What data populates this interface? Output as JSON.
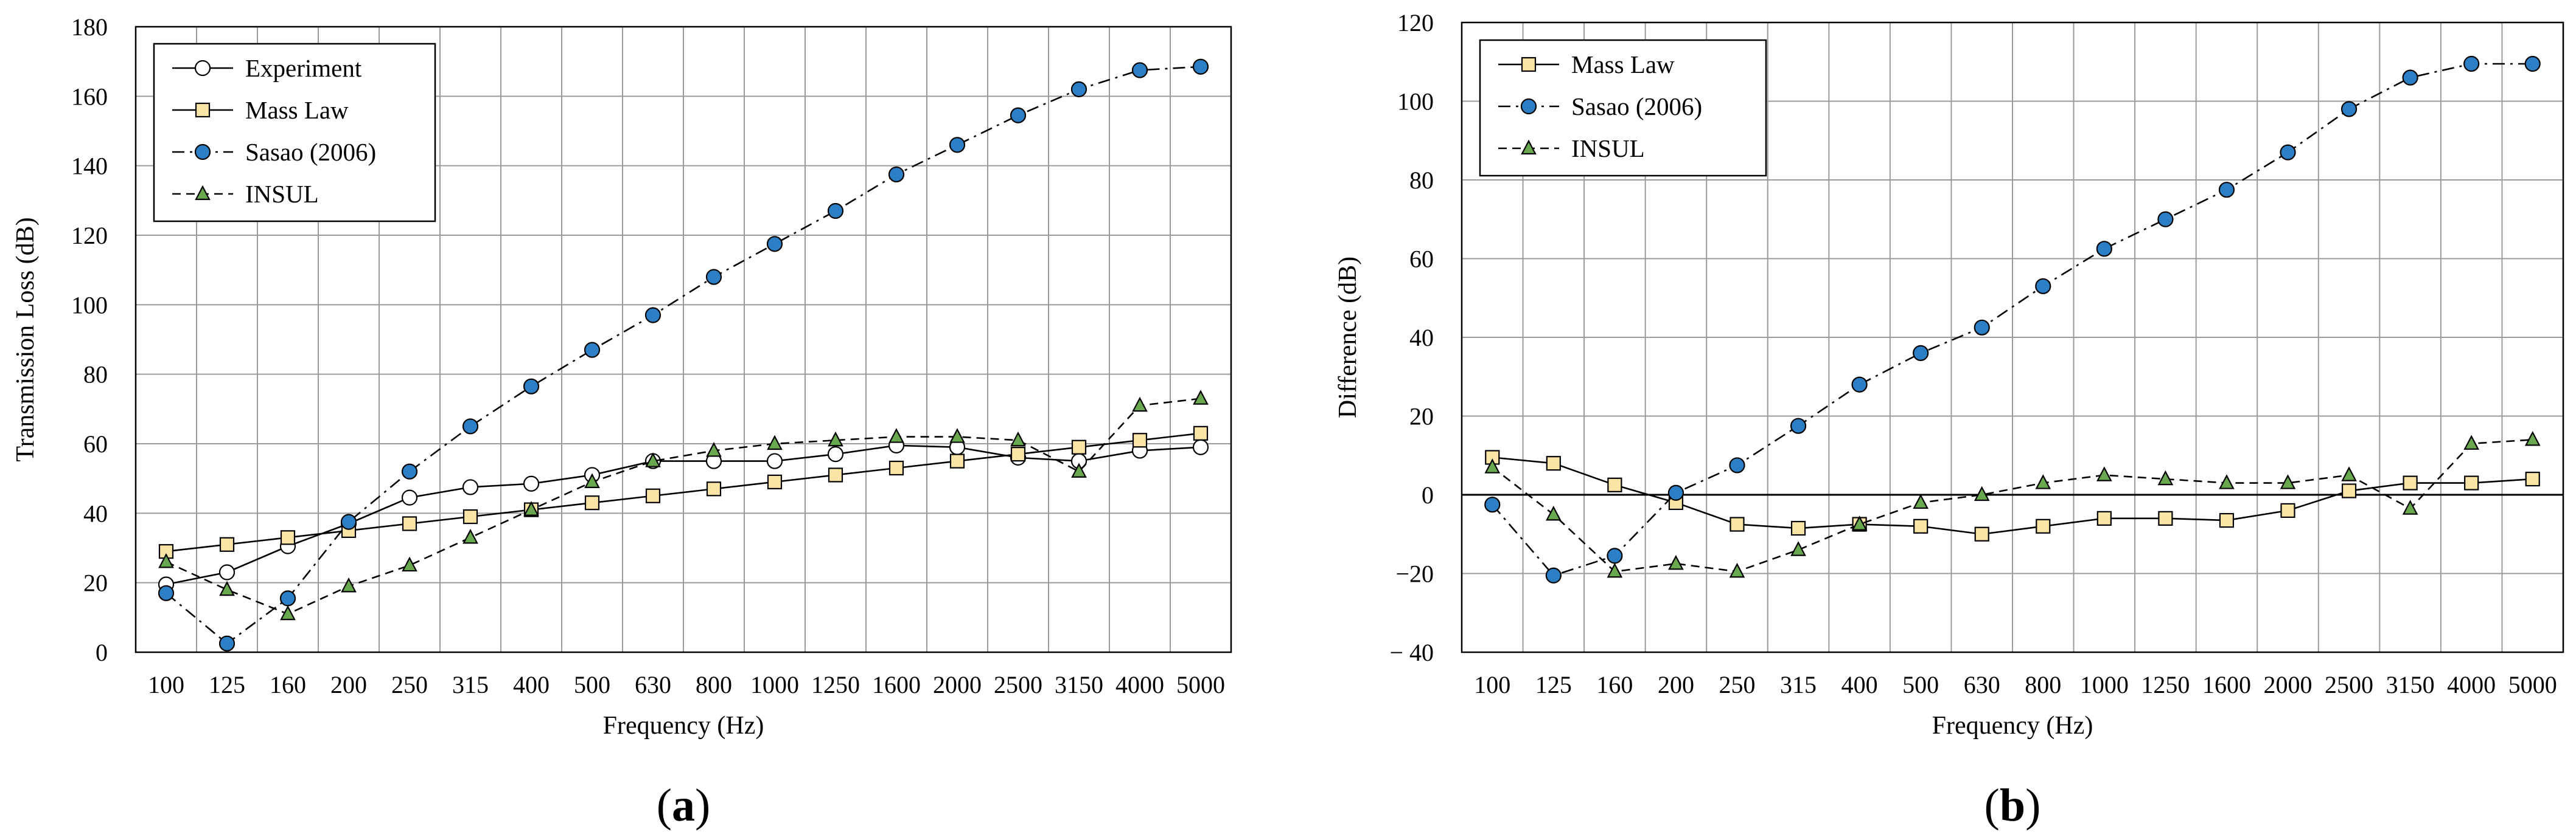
{
  "chart_data": [
    {
      "type": "line",
      "panel": "a",
      "panel_label": "a",
      "title": "",
      "xlabel": "Frequency  (Hz)",
      "ylabel": "Transmission Loss (dB)",
      "categories": [
        "100",
        "125",
        "160",
        "200",
        "250",
        "315",
        "400",
        "500",
        "630",
        "800",
        "1000",
        "1250",
        "1600",
        "2000",
        "2500",
        "3150",
        "4000",
        "5000"
      ],
      "ylim": [
        0,
        180
      ],
      "yticks": [
        0,
        20,
        40,
        60,
        80,
        100,
        120,
        140,
        160,
        180
      ],
      "ytick_labels": [
        "0",
        "20",
        "40",
        "60",
        "80",
        "100",
        "120",
        "140",
        "160",
        "180"
      ],
      "grid": true,
      "legend_position": "top-left",
      "series": [
        {
          "name": "Experiment",
          "marker": "circle",
          "color": "#ffffff",
          "line": "solid",
          "values": [
            19.5,
            23,
            30.5,
            37,
            44.5,
            47.5,
            48.5,
            51,
            55,
            55,
            55,
            57,
            59.5,
            59,
            56,
            55,
            58,
            59
          ]
        },
        {
          "name": "Mass Law",
          "marker": "square",
          "color": "#fbe5a6",
          "line": "solid",
          "values": [
            29,
            31,
            33,
            35,
            37,
            39,
            41,
            43,
            45,
            47,
            49,
            51,
            53,
            55,
            57,
            59,
            61,
            63
          ]
        },
        {
          "name": "Sasao (2006)",
          "marker": "circle",
          "color": "#2c7fc4",
          "line": "dashdot",
          "values": [
            17,
            2.5,
            15.5,
            37.5,
            52,
            65,
            76.5,
            87,
            97,
            108,
            117.5,
            127,
            137.5,
            146,
            154.5,
            162,
            167.5,
            168.5
          ]
        },
        {
          "name": "INSUL",
          "marker": "triangle",
          "color": "#6aa84f",
          "line": "dashed",
          "values": [
            26,
            18,
            11,
            19,
            25,
            33,
            41,
            49,
            55,
            58,
            60,
            61,
            62,
            62,
            61,
            52,
            71,
            73
          ]
        }
      ]
    },
    {
      "type": "line",
      "panel": "b",
      "panel_label": "b",
      "title": "",
      "xlabel": "Frequency  (Hz)",
      "ylabel": "Difference  (dB)",
      "categories": [
        "100",
        "125",
        "160",
        "200",
        "250",
        "315",
        "400",
        "500",
        "630",
        "800",
        "1000",
        "1250",
        "1600",
        "2000",
        "2500",
        "3150",
        "4000",
        "5000"
      ],
      "ylim": [
        -40,
        120
      ],
      "yticks": [
        -40,
        -20,
        0,
        20,
        40,
        60,
        80,
        100,
        120
      ],
      "ytick_labels": [
        "− 40",
        "−20",
        "0",
        "20",
        "40",
        "60",
        "80",
        "100",
        "120"
      ],
      "grid": true,
      "zero_line": true,
      "legend_position": "top-left",
      "series": [
        {
          "name": "Mass Law",
          "marker": "square",
          "color": "#fbe5a6",
          "line": "solid",
          "values": [
            9.5,
            8,
            2.5,
            -2,
            -7.5,
            -8.5,
            -7.5,
            -8,
            -10,
            -8,
            -6,
            -6,
            -6.5,
            -4,
            1,
            3,
            3,
            4
          ]
        },
        {
          "name": "Sasao (2006)",
          "marker": "circle",
          "color": "#2c7fc4",
          "line": "dashdot",
          "values": [
            -2.5,
            -20.5,
            -15.5,
            0.5,
            7.5,
            17.5,
            28,
            36,
            42.5,
            53,
            62.5,
            70,
            77.5,
            87,
            98,
            106,
            109.5,
            109.5
          ]
        },
        {
          "name": "INSUL",
          "marker": "triangle",
          "color": "#6aa84f",
          "line": "dashed",
          "values": [
            7,
            -5,
            -19.5,
            -17.5,
            -19.5,
            -14,
            -7.5,
            -2,
            0,
            3,
            5,
            4,
            3,
            3,
            5,
            -3.5,
            13,
            14
          ]
        }
      ]
    }
  ]
}
